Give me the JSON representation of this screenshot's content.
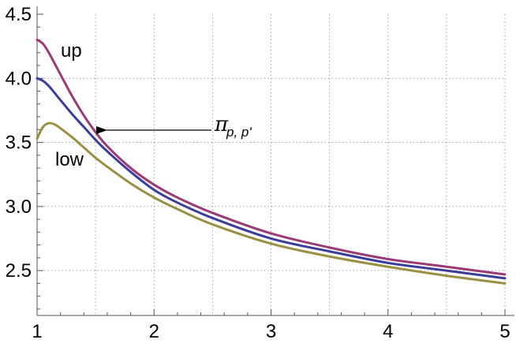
{
  "chart_data": {
    "type": "line",
    "title": "",
    "xlabel": "",
    "ylabel": "",
    "xlim": [
      1,
      5
    ],
    "ylim": [
      2.15,
      4.5
    ],
    "grid": true,
    "x_ticks": [
      1,
      2,
      3,
      4,
      5
    ],
    "x_tick_labels": [
      "1",
      "2",
      "3",
      "4",
      "5"
    ],
    "y_ticks": [
      2.5,
      3.0,
      3.5,
      4.0,
      4.5
    ],
    "y_tick_labels": [
      "2.5",
      "3.0",
      "3.5",
      "4.0",
      "4.5"
    ],
    "x_grid": [
      1.5,
      2,
      2.5,
      3,
      3.5,
      4,
      4.5,
      5
    ],
    "y_grid": [
      2.5,
      3.0,
      3.5,
      4.0
    ],
    "series": [
      {
        "name": "up",
        "color": "#9c3a77",
        "x": [
          1.0,
          1.05,
          1.1,
          1.2,
          1.3,
          1.4,
          1.5,
          1.6,
          1.8,
          2.0,
          2.2,
          2.5,
          3.0,
          3.5,
          4.0,
          4.5,
          5.0
        ],
        "y": [
          4.3,
          4.27,
          4.2,
          4.03,
          3.86,
          3.71,
          3.58,
          3.47,
          3.3,
          3.17,
          3.07,
          2.95,
          2.79,
          2.68,
          2.59,
          2.53,
          2.47
        ]
      },
      {
        "name": "",
        "color": "#3c3c9c",
        "x": [
          1.0,
          1.05,
          1.1,
          1.2,
          1.3,
          1.4,
          1.5,
          1.6,
          1.8,
          2.0,
          2.2,
          2.5,
          3.0,
          3.5,
          4.0,
          4.5,
          5.0
        ],
        "y": [
          4.0,
          3.98,
          3.94,
          3.83,
          3.72,
          3.62,
          3.52,
          3.43,
          3.27,
          3.13,
          3.03,
          2.91,
          2.75,
          2.65,
          2.56,
          2.5,
          2.44
        ]
      },
      {
        "name": "low",
        "color": "#9a8f42",
        "x": [
          1.0,
          1.05,
          1.1,
          1.15,
          1.2,
          1.3,
          1.4,
          1.5,
          1.6,
          1.8,
          2.0,
          2.2,
          2.5,
          3.0,
          3.5,
          4.0,
          4.5,
          5.0
        ],
        "y": [
          3.53,
          3.62,
          3.65,
          3.64,
          3.61,
          3.54,
          3.46,
          3.38,
          3.31,
          3.18,
          3.07,
          2.98,
          2.86,
          2.71,
          2.61,
          2.53,
          2.46,
          2.4
        ]
      }
    ],
    "annotations": [
      {
        "text": "up",
        "series": "up"
      },
      {
        "text": "low",
        "series": "low"
      },
      {
        "text": "π",
        "subscript": "p, p'",
        "arrow_to": {
          "x": 1.5,
          "y": 3.52
        }
      }
    ]
  }
}
